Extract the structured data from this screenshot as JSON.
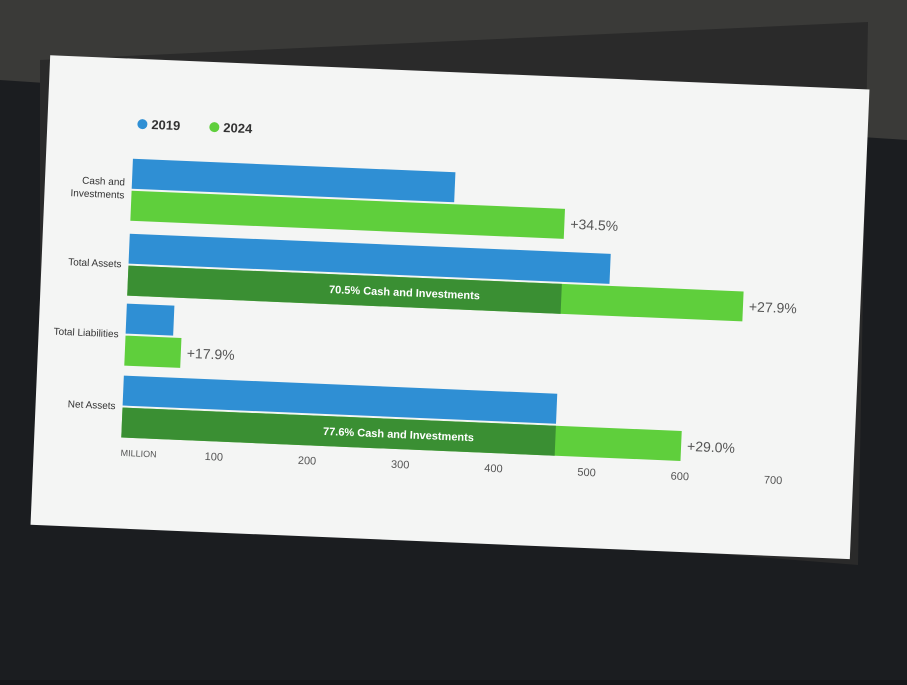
{
  "chart_data": {
    "type": "bar",
    "orientation": "horizontal",
    "categories": [
      "Cash and Investments",
      "Total Assets",
      "Total Liabilities",
      "Net Assets"
    ],
    "series": [
      {
        "name": "2019",
        "color": "#2f8fd4",
        "values": [
          346,
          516,
          51,
          465
        ]
      },
      {
        "name": "2024",
        "color": "#5fcf3c",
        "values": [
          465,
          660,
          60,
          600
        ]
      }
    ],
    "change_labels": [
      "+34.5%",
      "+27.9%",
      "+17.9%",
      "+29.0%"
    ],
    "segments": [
      {
        "category": "Total Assets",
        "value": 465,
        "label": "70.5% Cash and Investments",
        "color": "#3a8f33"
      },
      {
        "category": "Net Assets",
        "value": 465,
        "label": "77.6% Cash and Investments",
        "color": "#3a8f33"
      }
    ],
    "xlim": [
      0,
      700
    ],
    "xticks": [
      {
        "value": 0,
        "label": "MILLION"
      },
      100,
      200,
      300,
      400,
      500,
      600,
      700
    ],
    "legend": "top-left"
  }
}
